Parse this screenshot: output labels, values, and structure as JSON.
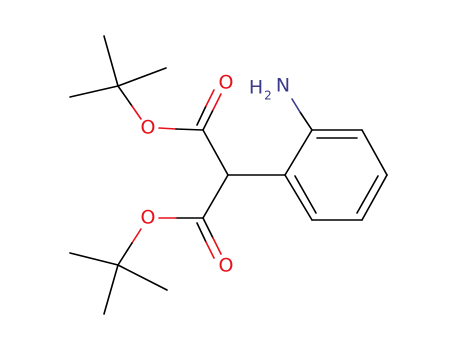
{
  "atoms": [
    {
      "label": "O"
    },
    {
      "label": "O"
    },
    {
      "label": "O"
    },
    {
      "label": "O"
    }
  ],
  "amine": {
    "hydrogen": "H",
    "count": "2",
    "element": "N"
  }
}
